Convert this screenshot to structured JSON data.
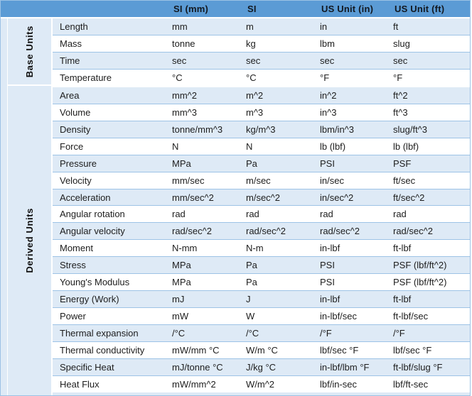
{
  "table": {
    "column_headers": [
      "SI (mm)",
      "SI",
      "US Unit (in)",
      "US Unit (ft)"
    ],
    "groups": [
      {
        "label": "Base Units",
        "rows": [
          {
            "label": "Length",
            "values": [
              "mm",
              "m",
              "in",
              "ft"
            ]
          },
          {
            "label": "Mass",
            "values": [
              "tonne",
              "kg",
              "lbm",
              "slug"
            ]
          },
          {
            "label": "Time",
            "values": [
              "sec",
              "sec",
              "sec",
              "sec"
            ]
          },
          {
            "label": "Temperature",
            "values": [
              "°C",
              "°C",
              "°F",
              "°F"
            ]
          }
        ]
      },
      {
        "label": "Derived Units",
        "rows": [
          {
            "label": "Area",
            "values": [
              "mm^2",
              "m^2",
              "in^2",
              "ft^2"
            ]
          },
          {
            "label": "Volume",
            "values": [
              "mm^3",
              "m^3",
              "in^3",
              "ft^3"
            ]
          },
          {
            "label": "Density",
            "values": [
              "tonne/mm^3",
              "kg/m^3",
              "lbm/in^3",
              "slug/ft^3"
            ]
          },
          {
            "label": "Force",
            "values": [
              "N",
              "N",
              "lb (lbf)",
              "lb (lbf)"
            ]
          },
          {
            "label": "Pressure",
            "values": [
              "MPa",
              "Pa",
              "PSI",
              "PSF"
            ]
          },
          {
            "label": "Velocity",
            "values": [
              "mm/sec",
              "m/sec",
              "in/sec",
              "ft/sec"
            ]
          },
          {
            "label": "Acceleration",
            "values": [
              "mm/sec^2",
              "m/sec^2",
              "in/sec^2",
              "ft/sec^2"
            ]
          },
          {
            "label": "Angular rotation",
            "values": [
              "rad",
              "rad",
              "rad",
              "rad"
            ]
          },
          {
            "label": "Angular velocity",
            "values": [
              "rad/sec^2",
              "rad/sec^2",
              "rad/sec^2",
              "rad/sec^2"
            ]
          },
          {
            "label": "Moment",
            "values": [
              "N-mm",
              "N-m",
              "in-lbf",
              "ft-lbf"
            ]
          },
          {
            "label": "Stress",
            "values": [
              "MPa",
              "Pa",
              "PSI",
              "PSF (lbf/ft^2)"
            ]
          },
          {
            "label": "Young's Modulus",
            "values": [
              "MPa",
              "Pa",
              "PSI",
              "PSF (lbf/ft^2)"
            ]
          },
          {
            "label": "Energy (Work)",
            "values": [
              "mJ",
              "J",
              "in-lbf",
              "ft-lbf"
            ]
          },
          {
            "label": "Power",
            "values": [
              "mW",
              "W",
              "in-lbf/sec",
              "ft-lbf/sec"
            ]
          },
          {
            "label": "Thermal expansion",
            "values": [
              "/°C",
              "/°C",
              "/°F",
              "/°F"
            ]
          },
          {
            "label": "Thermal conductivity",
            "values": [
              "mW/mm °C",
              "W/m °C",
              "lbf/sec °F",
              "lbf/sec °F"
            ]
          },
          {
            "label": "Specific Heat",
            "values": [
              "mJ/tonne °C",
              "J/kg °C",
              "in-lbf/lbm °F",
              "ft-lbf/slug °F"
            ]
          },
          {
            "label": "Heat Flux",
            "values": [
              "mW/mm^2",
              "W/m^2",
              "lbf/in-sec",
              "lbf/ft-sec"
            ]
          }
        ]
      }
    ]
  },
  "colors": {
    "header_bg": "#5B9BD5",
    "band_bg": "#DEEAF6",
    "row_separator": "#9DC3E6",
    "outer_border": "#9CC2E5",
    "header_text": "#121820",
    "body_text": "#1D1D1D"
  }
}
